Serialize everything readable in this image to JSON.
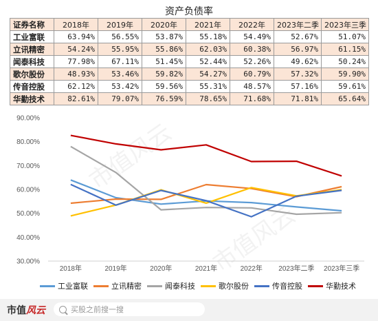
{
  "table": {
    "title": "资产负债率",
    "header": [
      "证券名称",
      "2018年",
      "2019年",
      "2020年",
      "2021年",
      "2022年",
      "2023年二季",
      "2023年三季"
    ],
    "rows": [
      {
        "name": "工业富联",
        "values": [
          "63.94%",
          "56.55%",
          "53.87%",
          "55.18%",
          "54.49%",
          "52.67%",
          "51.07%"
        ]
      },
      {
        "name": "立讯精密",
        "values": [
          "54.24%",
          "55.95%",
          "55.86%",
          "62.03%",
          "60.38%",
          "56.97%",
          "61.15%"
        ]
      },
      {
        "name": "闻泰科技",
        "values": [
          "77.98%",
          "67.11%",
          "51.45%",
          "52.44%",
          "52.26%",
          "49.62%",
          "50.24%"
        ]
      },
      {
        "name": "歌尔股份",
        "values": [
          "48.93%",
          "53.46%",
          "59.82%",
          "54.27%",
          "60.79%",
          "57.32%",
          "59.90%"
        ]
      },
      {
        "name": "传音控股",
        "values": [
          "62.12%",
          "53.42%",
          "59.56%",
          "55.31%",
          "48.57%",
          "57.16%",
          "59.61%"
        ]
      },
      {
        "name": "华勤技术",
        "values": [
          "82.61%",
          "79.07%",
          "76.59%",
          "78.65%",
          "71.68%",
          "71.81%",
          "65.64%"
        ]
      }
    ]
  },
  "chart_data": {
    "type": "line",
    "title": "",
    "xlabel": "",
    "ylabel": "",
    "categories": [
      "2018年",
      "2019年",
      "2020年",
      "2021年",
      "2022年",
      "2023年二季",
      "2023年三季"
    ],
    "ylim": [
      30,
      90
    ],
    "yticks": [
      "30.00%",
      "40.00%",
      "50.00%",
      "60.00%",
      "70.00%",
      "80.00%",
      "90.00%"
    ],
    "grid": false,
    "legend_position": "bottom",
    "series": [
      {
        "name": "工业富联",
        "color": "#5b9bd5",
        "values": [
          63.94,
          56.55,
          53.87,
          55.18,
          54.49,
          52.67,
          51.07
        ]
      },
      {
        "name": "立讯精密",
        "color": "#ed7d31",
        "values": [
          54.24,
          55.95,
          55.86,
          62.03,
          60.38,
          56.97,
          61.15
        ]
      },
      {
        "name": "闻泰科技",
        "color": "#a5a5a5",
        "values": [
          77.98,
          67.11,
          51.45,
          52.44,
          52.26,
          49.62,
          50.24
        ]
      },
      {
        "name": "歌尔股份",
        "color": "#ffc000",
        "values": [
          48.93,
          53.46,
          59.82,
          54.27,
          60.79,
          57.32,
          59.9
        ]
      },
      {
        "name": "传音控股",
        "color": "#4472c4",
        "values": [
          62.12,
          53.42,
          59.56,
          55.31,
          48.57,
          57.16,
          59.61
        ]
      },
      {
        "name": "华勤技术",
        "color": "#c00000",
        "values": [
          82.61,
          79.07,
          76.59,
          78.65,
          71.68,
          71.81,
          65.64
        ]
      }
    ]
  },
  "watermark": {
    "text": "市值风云"
  },
  "footer": {
    "logo_main": "市值",
    "logo_accent": "风云",
    "search_placeholder": "买股之前搜一搜",
    "search_icon": "search-icon"
  }
}
